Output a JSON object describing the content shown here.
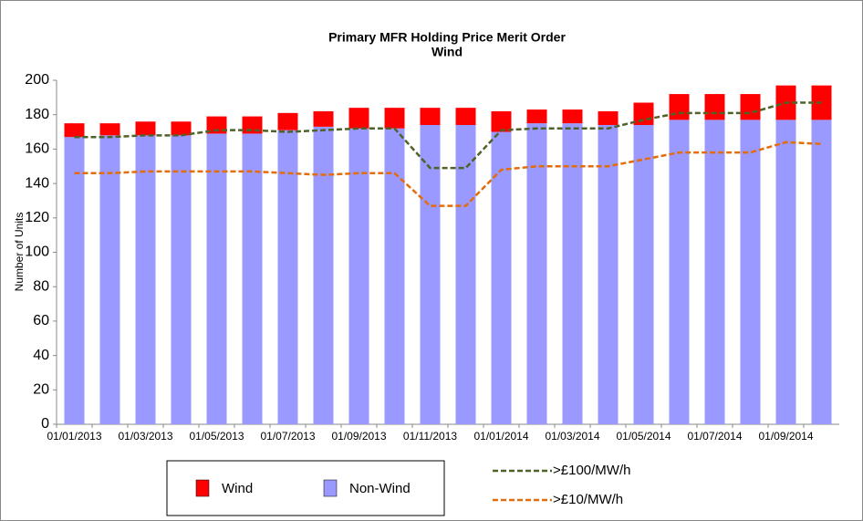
{
  "chart_data": {
    "type": "bar",
    "title": "Primary MFR Holding Price Merit Order",
    "subtitle": "Wind",
    "y_label": "Number of Units",
    "categories": [
      "01/01/2013",
      null,
      "01/03/2013",
      null,
      "01/05/2013",
      null,
      "01/07/2013",
      null,
      "01/09/2013",
      null,
      "01/11/2013",
      null,
      "01/01/2014",
      null,
      "01/03/2014",
      null,
      "01/05/2014",
      null,
      "01/07/2014",
      null,
      "01/09/2014",
      null
    ],
    "series": [
      {
        "name": "Non-Wind",
        "color": "#9999ff",
        "values": [
          167,
          168,
          168,
          168,
          169,
          169,
          171,
          173,
          172,
          172,
          174,
          174,
          170,
          175,
          175,
          174,
          174,
          177,
          177,
          177,
          177,
          177
        ]
      },
      {
        "name": "Wind",
        "color": "#ff0000",
        "values": [
          8,
          7,
          8,
          8,
          10,
          10,
          10,
          9,
          12,
          12,
          10,
          10,
          12,
          8,
          8,
          8,
          13,
          15,
          15,
          15,
          20,
          20
        ]
      }
    ],
    "lines": [
      {
        "name": ">£100/MW/h",
        "color": "#4f6228",
        "values": [
          167,
          167,
          168,
          168,
          171,
          171,
          170,
          171,
          172,
          172,
          149,
          149,
          171,
          172,
          172,
          172,
          177,
          181,
          181,
          181,
          187,
          187
        ]
      },
      {
        "name": ">£10/MW/h",
        "color": "#e46c0a",
        "values": [
          146,
          146,
          147,
          147,
          147,
          147,
          146,
          145,
          146,
          146,
          127,
          127,
          148,
          150,
          150,
          150,
          154,
          158,
          158,
          158,
          164,
          163
        ]
      }
    ],
    "ylim": [
      0,
      200
    ],
    "yticks": [
      0,
      20,
      40,
      60,
      80,
      100,
      120,
      140,
      160,
      180,
      200
    ],
    "grid": false
  }
}
